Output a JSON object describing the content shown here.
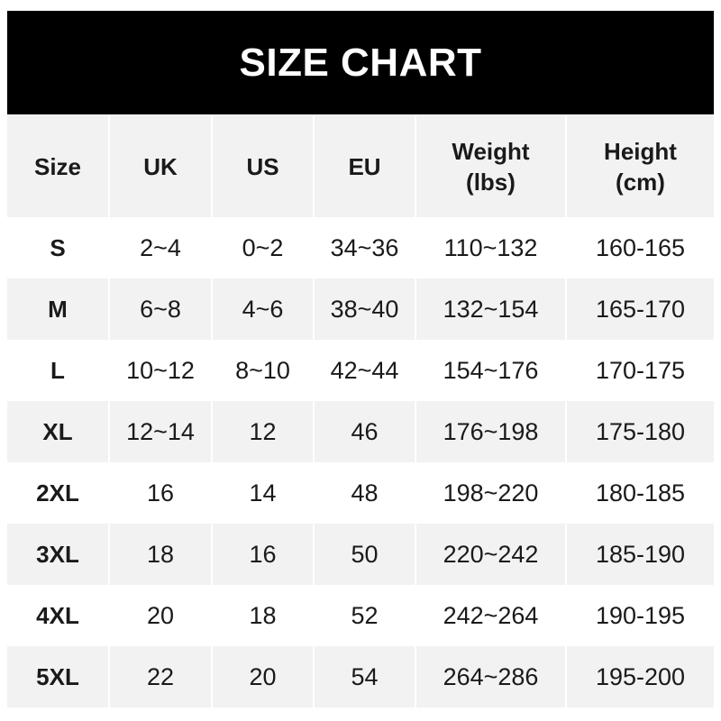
{
  "title": "SIZE CHART",
  "headers": [
    {
      "line1": "Size",
      "line2": ""
    },
    {
      "line1": "UK",
      "line2": ""
    },
    {
      "line1": "US",
      "line2": ""
    },
    {
      "line1": "EU",
      "line2": ""
    },
    {
      "line1": "Weight",
      "line2": "(lbs)"
    },
    {
      "line1": "Height",
      "line2": "(cm)"
    }
  ],
  "rows": [
    [
      "S",
      "2~4",
      "0~2",
      "34~36",
      "110~132",
      "160-165"
    ],
    [
      "M",
      "6~8",
      "4~6",
      "38~40",
      "132~154",
      "165-170"
    ],
    [
      "L",
      "10~12",
      "8~10",
      "42~44",
      "154~176",
      "170-175"
    ],
    [
      "XL",
      "12~14",
      "12",
      "46",
      "176~198",
      "175-180"
    ],
    [
      "2XL",
      "16",
      "14",
      "48",
      "198~220",
      "180-185"
    ],
    [
      "3XL",
      "18",
      "16",
      "50",
      "220~242",
      "185-190"
    ],
    [
      "4XL",
      "20",
      "18",
      "52",
      "242~264",
      "190-195"
    ],
    [
      "5XL",
      "22",
      "20",
      "54",
      "264~286",
      "195-200"
    ]
  ],
  "colors": {
    "header_bg": "#000000",
    "stripe": "#f2f2f2"
  }
}
